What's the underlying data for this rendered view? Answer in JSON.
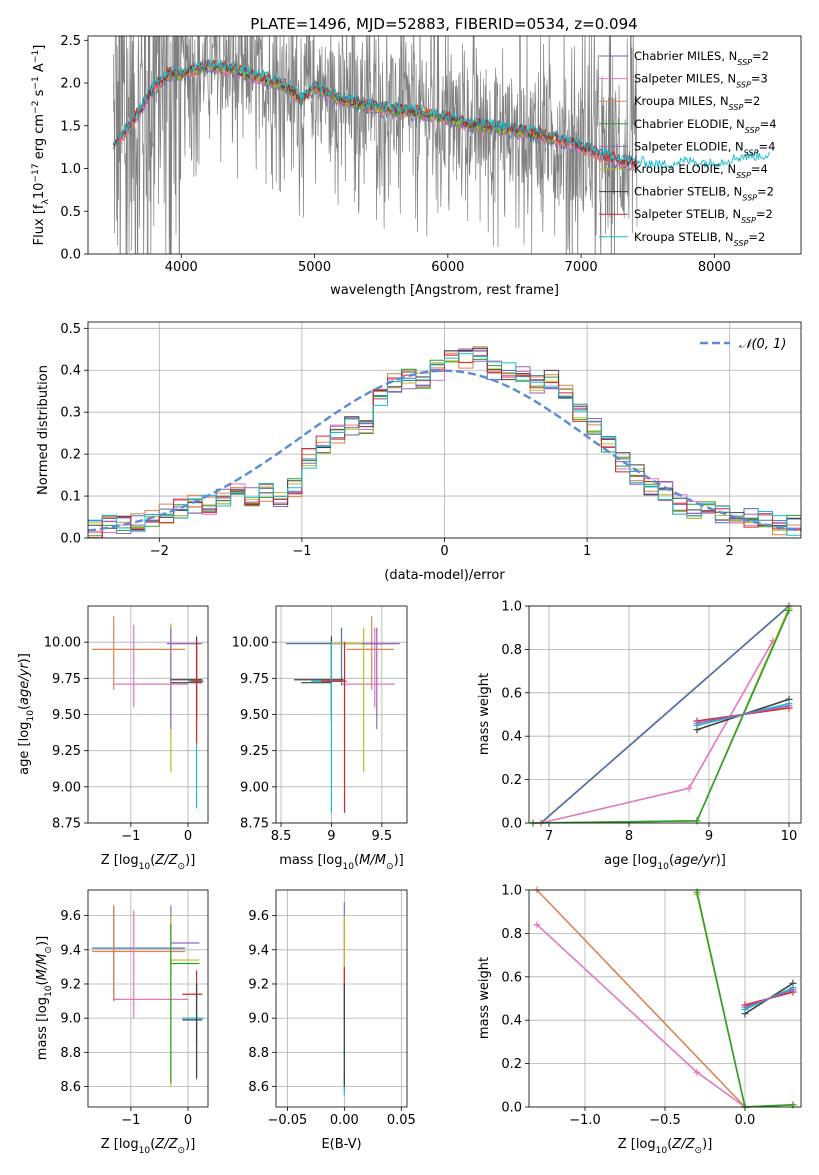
{
  "title": "PLATE=1496, MJD=52883, FIBERID=0534, z=0.094",
  "colors": {
    "Chabrier MILES": "#4c72b0",
    "Salpeter MILES": "#e377c2",
    "Kroupa MILES": "#dd8452",
    "Chabrier ELODIE": "#2ca02c",
    "Salpeter ELODIE": "#9467bd",
    "Kroupa ELODIE": "#bcbd22",
    "Chabrier STELIB": "#404040",
    "Salpeter STELIB": "#d62728",
    "Kroupa STELIB": "#17becf",
    "data": "#808080",
    "gauss": "#5b8bd6"
  },
  "legend": [
    {
      "base": "Chabrier MILES",
      "n": "2"
    },
    {
      "base": "Salpeter MILES",
      "n": "3"
    },
    {
      "base": "Kroupa MILES",
      "n": "2"
    },
    {
      "base": "Chabrier ELODIE",
      "n": "4"
    },
    {
      "base": "Salpeter ELODIE",
      "n": "4"
    },
    {
      "base": "Kroupa ELODIE",
      "n": "4"
    },
    {
      "base": "Chabrier STELIB",
      "n": "2"
    },
    {
      "base": "Salpeter STELIB",
      "n": "2"
    },
    {
      "base": "Kroupa STELIB",
      "n": "2"
    }
  ],
  "chart_data": [
    {
      "id": "spectrum",
      "type": "line",
      "xlabel": "wavelength [Angstrom, rest frame]",
      "ylabel": "Flux [f_λ 10^-17 erg cm^-2 s^-1 A^-1]",
      "xlim": [
        3300,
        8650
      ],
      "ylim": [
        0,
        2.55
      ],
      "xticks": [
        4000,
        5000,
        6000,
        7000,
        8000
      ],
      "yticks": [
        0.0,
        0.5,
        1.0,
        1.5,
        2.0,
        2.5
      ],
      "grid": false,
      "legend_position": "upper-right",
      "data_range": [
        3490,
        7420
      ],
      "model_range": [
        3490,
        8420
      ],
      "continuum": [
        [
          3500,
          1.25
        ],
        [
          3700,
          1.7
        ],
        [
          3800,
          1.95
        ],
        [
          3900,
          2.1
        ],
        [
          4000,
          2.1
        ],
        [
          4200,
          2.2
        ],
        [
          4400,
          2.15
        ],
        [
          4600,
          2.05
        ],
        [
          4800,
          1.95
        ],
        [
          4900,
          1.8
        ],
        [
          5000,
          1.95
        ],
        [
          5200,
          1.8
        ],
        [
          5500,
          1.7
        ],
        [
          5800,
          1.65
        ],
        [
          6000,
          1.58
        ],
        [
          6200,
          1.5
        ],
        [
          6500,
          1.45
        ],
        [
          6800,
          1.35
        ],
        [
          7000,
          1.25
        ],
        [
          7200,
          1.12
        ],
        [
          7420,
          1.05
        ],
        [
          7600,
          1.0
        ],
        [
          7800,
          1.05
        ],
        [
          8000,
          1.02
        ],
        [
          8200,
          1.1
        ],
        [
          8420,
          1.12
        ]
      ]
    },
    {
      "id": "residuals",
      "type": "histogram",
      "xlabel": "(data-model)/error",
      "ylabel": "Normed distribution",
      "xlim": [
        -2.5,
        2.5
      ],
      "ylim": [
        0,
        0.515
      ],
      "xticks": [
        -2,
        -1,
        0,
        1,
        2
      ],
      "yticks": [
        0.0,
        0.1,
        0.2,
        0.3,
        0.4,
        0.5
      ],
      "grid": true,
      "legend_position": "upper-right",
      "gauss_label": "N(0,1)",
      "bin_width": 0.1,
      "bin_edges_start": -2.5,
      "base_hist": [
        0.02,
        0.03,
        0.03,
        0.04,
        0.05,
        0.06,
        0.07,
        0.08,
        0.08,
        0.1,
        0.11,
        0.1,
        0.11,
        0.09,
        0.12,
        0.19,
        0.22,
        0.25,
        0.27,
        0.26,
        0.34,
        0.37,
        0.38,
        0.38,
        0.4,
        0.44,
        0.43,
        0.44,
        0.4,
        0.4,
        0.39,
        0.37,
        0.38,
        0.34,
        0.3,
        0.27,
        0.22,
        0.18,
        0.15,
        0.12,
        0.11,
        0.08,
        0.07,
        0.08,
        0.06,
        0.06,
        0.05,
        0.04,
        0.03,
        0.03
      ]
    },
    {
      "id": "age-vs-Z",
      "type": "scatter",
      "xlabel": "Z [log10(Z/Z⊙)]",
      "ylabel": "age  [log10(age/yr)]",
      "xlim": [
        -1.75,
        0.35
      ],
      "ylim": [
        8.75,
        10.25
      ],
      "xticks": [
        -1,
        0
      ],
      "yticks": [
        8.75,
        9.0,
        9.25,
        9.5,
        9.75,
        10.0
      ]
    },
    {
      "id": "age-vs-mass",
      "type": "scatter",
      "xlabel": "mass [log10(M/M⊙)]",
      "ylabel": "",
      "xlim": [
        8.45,
        9.75
      ],
      "ylim": [
        8.75,
        10.25
      ],
      "xticks": [
        8.5,
        9.0,
        9.5
      ],
      "yticks": [
        8.75,
        9.0,
        9.25,
        9.5,
        9.75,
        10.0
      ]
    },
    {
      "id": "weight-vs-age",
      "type": "line",
      "xlabel": "age  [log10(age/yr)]",
      "ylabel": "mass weight",
      "xlim": [
        6.75,
        10.15
      ],
      "ylim": [
        0,
        1.0
      ],
      "xticks": [
        7,
        8,
        9,
        10
      ],
      "yticks": [
        0.0,
        0.2,
        0.4,
        0.6,
        0.8,
        1.0
      ],
      "series": [
        {
          "name": "Kroupa MILES",
          "x": [
            6.9,
            10.0
          ],
          "y": [
            0.0,
            1.0
          ]
        },
        {
          "name": "Chabrier MILES",
          "x": [
            6.9,
            10.0
          ],
          "y": [
            0.0,
            1.0
          ]
        },
        {
          "name": "Salpeter MILES",
          "x": [
            6.9,
            8.75,
            9.8
          ],
          "y": [
            0.0,
            0.16,
            0.84
          ]
        },
        {
          "name": "Kroupa ELODIE",
          "x": [
            6.8,
            8.85,
            10.0
          ],
          "y": [
            0.0,
            0.01,
            0.99
          ]
        },
        {
          "name": "Chabrier ELODIE",
          "x": [
            6.8,
            8.85,
            10.0
          ],
          "y": [
            0.0,
            0.01,
            0.98
          ]
        },
        {
          "name": "Chabrier STELIB",
          "x": [
            8.85,
            10.0
          ],
          "y": [
            0.43,
            0.57
          ]
        },
        {
          "name": "Salpeter STELIB",
          "x": [
            8.85,
            10.0
          ],
          "y": [
            0.47,
            0.53
          ]
        },
        {
          "name": "Kroupa STELIB",
          "x": [
            8.85,
            10.0
          ],
          "y": [
            0.45,
            0.55
          ]
        },
        {
          "name": "Salpeter ELODIE",
          "x": [
            8.85,
            10.0
          ],
          "y": [
            0.46,
            0.54
          ]
        }
      ]
    },
    {
      "id": "mass-vs-Z",
      "type": "scatter",
      "xlabel": "Z [log10(Z/Z⊙)]",
      "ylabel": "mass [log10(M/M⊙)]",
      "xlim": [
        -1.75,
        0.35
      ],
      "ylim": [
        8.48,
        9.75
      ],
      "xticks": [
        -1,
        0
      ],
      "yticks": [
        8.6,
        8.8,
        9.0,
        9.2,
        9.4,
        9.6
      ]
    },
    {
      "id": "mass-vs-EBV",
      "type": "scatter",
      "xlabel": "E(B-V)",
      "ylabel": "",
      "xlim": [
        -0.06,
        0.055
      ],
      "ylim": [
        8.48,
        9.75
      ],
      "xticks": [
        -0.05,
        0.0,
        0.05
      ],
      "yticks": [
        8.6,
        8.8,
        9.0,
        9.2,
        9.4,
        9.6
      ]
    },
    {
      "id": "weight-vs-Z",
      "type": "line",
      "xlabel": "Z [log10(Z/Z⊙)]",
      "ylabel": "mass weight",
      "xlim": [
        -1.35,
        0.35
      ],
      "ylim": [
        0,
        1.0
      ],
      "xticks": [
        -1.0,
        -0.5,
        0.0
      ],
      "yticks": [
        0.0,
        0.2,
        0.4,
        0.6,
        0.8,
        1.0
      ],
      "series": [
        {
          "name": "Kroupa MILES",
          "x": [
            -1.3,
            0.0
          ],
          "y": [
            1.0,
            0.0
          ]
        },
        {
          "name": "Salpeter MILES",
          "x": [
            -1.3,
            -0.3,
            0.0
          ],
          "y": [
            0.84,
            0.16,
            0.0
          ]
        },
        {
          "name": "Kroupa ELODIE",
          "x": [
            -0.3,
            0.0,
            0.3
          ],
          "y": [
            0.98,
            0.0,
            0.01
          ]
        },
        {
          "name": "Chabrier ELODIE",
          "x": [
            -0.3,
            0.0,
            0.3
          ],
          "y": [
            0.99,
            0.0,
            0.01
          ]
        },
        {
          "name": "Chabrier STELIB",
          "x": [
            0.0,
            0.3
          ],
          "y": [
            0.43,
            0.57
          ]
        },
        {
          "name": "Salpeter STELIB",
          "x": [
            0.0,
            0.3
          ],
          "y": [
            0.47,
            0.53
          ]
        },
        {
          "name": "Kroupa STELIB",
          "x": [
            0.0,
            0.3
          ],
          "y": [
            0.45,
            0.55
          ]
        },
        {
          "name": "Salpeter ELODIE",
          "x": [
            0.0,
            0.3
          ],
          "y": [
            0.46,
            0.54
          ]
        }
      ]
    }
  ],
  "errorbars": {
    "age_Z": [
      {
        "s": "Kroupa MILES",
        "x": -1.3,
        "y": 9.95,
        "x0": -1.68,
        "x1": -0.05,
        "y0": 9.67,
        "y1": 10.18
      },
      {
        "s": "Salpeter MILES",
        "x": -0.95,
        "y": 9.71,
        "x0": -1.3,
        "x1": 0.0,
        "y0": 9.55,
        "y1": 10.12
      },
      {
        "s": "Kroupa ELODIE",
        "x": -0.3,
        "y": 9.99,
        "x0": -0.33,
        "x1": 0.2,
        "y0": 9.1,
        "y1": 10.13
      },
      {
        "s": "Salpeter ELODIE",
        "x": -0.3,
        "y": 9.99,
        "x0": -0.37,
        "x1": 0.25,
        "y0": 9.4,
        "y1": 10.1
      },
      {
        "s": "Chabrier STELIB",
        "x": 0.15,
        "y": 9.74,
        "x0": -0.3,
        "x1": 0.25,
        "y0": 9.45,
        "y1": 10.04
      },
      {
        "s": "Chabrier STELIB",
        "x": 0.15,
        "y": 9.72,
        "x0": -0.3,
        "x1": 0.25,
        "y0": 9.5,
        "y1": 10.0
      },
      {
        "s": "Kroupa STELIB",
        "x": 0.15,
        "y": 9.73,
        "x0": 0.0,
        "x1": 0.28,
        "y0": 8.85,
        "y1": 10.0
      },
      {
        "s": "Salpeter STELIB",
        "x": 0.15,
        "y": 9.73,
        "x0": 0.05,
        "x1": 0.25,
        "y0": 9.3,
        "y1": 10.0
      }
    ],
    "age_mass": [
      {
        "s": "Chabrier MILES",
        "x": 9.1,
        "y": 9.99,
        "x0": 8.55,
        "x1": 9.62,
        "y0": 9.7,
        "y1": 10.1
      },
      {
        "s": "Kroupa MILES",
        "x": 9.4,
        "y": 9.95,
        "x0": 9.15,
        "x1": 9.62,
        "y0": 9.67,
        "y1": 10.18
      },
      {
        "s": "Salpeter MILES",
        "x": 9.43,
        "y": 9.71,
        "x0": 9.1,
        "x1": 9.63,
        "y0": 9.55,
        "y1": 10.1
      },
      {
        "s": "Kroupa ELODIE",
        "x": 9.32,
        "y": 9.99,
        "x0": 9.0,
        "x1": 9.4,
        "y0": 9.1,
        "y1": 10.1
      },
      {
        "s": "Salpeter ELODIE",
        "x": 9.45,
        "y": 9.99,
        "x0": 9.3,
        "x1": 9.68,
        "y0": 9.4,
        "y1": 10.1
      },
      {
        "s": "Chabrier STELIB",
        "x": 9.0,
        "y": 9.74,
        "x0": 8.63,
        "x1": 9.12,
        "y0": 9.5,
        "y1": 10.04
      },
      {
        "s": "Chabrier STELIB",
        "x": 9.0,
        "y": 9.72,
        "x0": 8.7,
        "x1": 9.0,
        "y0": 9.45,
        "y1": 10.0
      },
      {
        "s": "Kroupa STELIB",
        "x": 9.0,
        "y": 9.73,
        "x0": 8.8,
        "x1": 9.1,
        "y0": 8.82,
        "y1": 10.0
      },
      {
        "s": "Salpeter STELIB",
        "x": 9.13,
        "y": 9.73,
        "x0": 8.9,
        "x1": 9.15,
        "y0": 8.82,
        "y1": 10.0
      }
    ],
    "mass_Z": [
      {
        "s": "Chabrier MILES",
        "x": -1.3,
        "y": 9.41,
        "x0": -1.68,
        "x1": -0.05,
        "y0": 9.1,
        "y1": 9.66
      },
      {
        "s": "Kroupa MILES",
        "x": -1.3,
        "y": 9.39,
        "x0": -1.68,
        "x1": -0.05,
        "y0": 9.1,
        "y1": 9.66
      },
      {
        "s": "Salpeter MILES",
        "x": -0.95,
        "y": 9.11,
        "x0": -1.3,
        "x1": 0.0,
        "y0": 9.0,
        "y1": 9.63
      },
      {
        "s": "Salpeter ELODIE",
        "x": -0.3,
        "y": 9.44,
        "x0": -0.3,
        "x1": 0.2,
        "y0": 9.25,
        "y1": 9.66
      },
      {
        "s": "Kroupa ELODIE",
        "x": -0.3,
        "y": 9.34,
        "x0": -0.3,
        "x1": 0.2,
        "y0": 8.6,
        "y1": 9.6
      },
      {
        "s": "Chabrier ELODIE",
        "x": -0.3,
        "y": 9.32,
        "x0": -0.3,
        "x1": 0.2,
        "y0": 8.62,
        "y1": 9.55
      },
      {
        "s": "Salpeter STELIB",
        "x": 0.15,
        "y": 9.14,
        "x0": -0.1,
        "x1": 0.25,
        "y0": 8.85,
        "y1": 9.28
      },
      {
        "s": "Kroupa STELIB",
        "x": 0.15,
        "y": 9.0,
        "x0": -0.1,
        "x1": 0.28,
        "y0": 8.64,
        "y1": 9.2
      },
      {
        "s": "Chabrier STELIB",
        "x": 0.15,
        "y": 8.99,
        "x0": -0.1,
        "x1": 0.25,
        "y0": 8.65,
        "y1": 9.2
      }
    ],
    "mass_EBV": [
      {
        "s": "Salpeter ELODIE",
        "x": 0.0,
        "y": 9.44,
        "x0": 0.0,
        "x1": 0.0,
        "y0": 9.2,
        "y1": 9.68
      },
      {
        "s": "Kroupa ELODIE",
        "x": 0.0,
        "y": 9.3,
        "x0": 0.0,
        "x1": 0.0,
        "y0": 8.55,
        "y1": 9.6
      },
      {
        "s": "Salpeter STELIB",
        "x": 0.0,
        "y": 9.14,
        "x0": 0.0,
        "x1": 0.0,
        "y0": 9.0,
        "y1": 9.3
      },
      {
        "s": "Kroupa STELIB",
        "x": 0.0,
        "y": 9.0,
        "x0": 0.0,
        "x1": 0.0,
        "y0": 8.55,
        "y1": 9.15
      },
      {
        "s": "Chabrier STELIB",
        "x": 0.0,
        "y": 8.99,
        "x0": 0.0,
        "x1": 0.0,
        "y0": 8.6,
        "y1": 9.2
      }
    ]
  }
}
